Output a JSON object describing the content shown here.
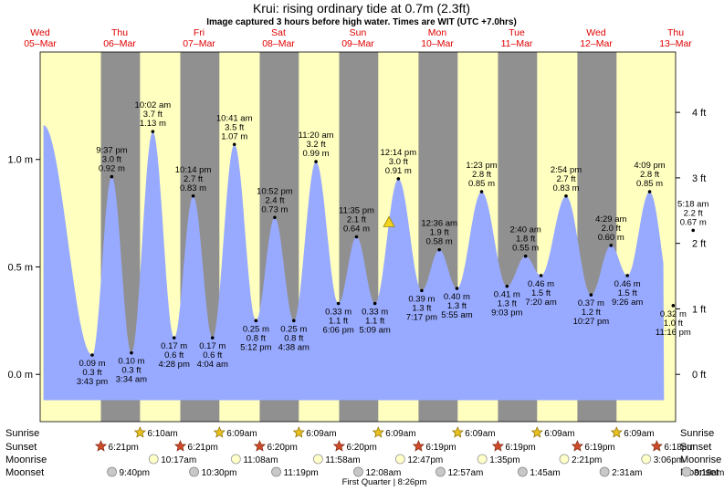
{
  "title": "Krui: rising  ordinary tide at 0.7m (2.3ft)",
  "subtitle": "Image captured 3 hours before high water. Times are WIT (UTC +7.0hrs)",
  "colors": {
    "day": "#ffffc0",
    "night": "#909090",
    "tide": "#98aaff",
    "day_label": "#e00000",
    "axis": "#000000"
  },
  "days": [
    {
      "dow": "Wed",
      "date": "05–Mar"
    },
    {
      "dow": "Thu",
      "date": "06–Mar"
    },
    {
      "dow": "Fri",
      "date": "07–Mar"
    },
    {
      "dow": "Sat",
      "date": "08–Mar"
    },
    {
      "dow": "Sun",
      "date": "09–Mar"
    },
    {
      "dow": "Mon",
      "date": "10–Mar"
    },
    {
      "dow": "Tue",
      "date": "11–Mar"
    },
    {
      "dow": "Wed",
      "date": "12–Mar"
    },
    {
      "dow": "Thu",
      "date": "13–Mar"
    }
  ],
  "chart_data": {
    "type": "area",
    "title": "Krui: rising  ordinary tide at 0.7m (2.3ft)",
    "time_unit": "hours from 00:00 Wed 05-Mar (WIT)",
    "x_range_hours": [
      0,
      192
    ],
    "y_left": {
      "unit": "m",
      "range": [
        -0.22,
        1.5
      ],
      "ticks": [
        {
          "v": 0.0,
          "label": "0.0 m"
        },
        {
          "v": 0.5,
          "label": "0.5 m"
        },
        {
          "v": 1.0,
          "label": "1.0 m"
        }
      ]
    },
    "y_right": {
      "unit": "ft",
      "ticks": [
        {
          "v": 0.0,
          "label": "0 ft"
        },
        {
          "v": 0.3048,
          "label": "1 ft"
        },
        {
          "v": 0.6096,
          "label": "2 ft"
        },
        {
          "v": 0.9144,
          "label": "3 ft"
        },
        {
          "v": 1.2192,
          "label": "4 ft"
        }
      ]
    },
    "night_periods_hours": [
      [
        18.35,
        30.17
      ],
      [
        42.35,
        54.15
      ],
      [
        66.33,
        78.15
      ],
      [
        90.33,
        102.15
      ],
      [
        114.32,
        126.15
      ],
      [
        138.32,
        150.15
      ],
      [
        162.32,
        174.15
      ]
    ],
    "curve_start": {
      "t": 1.0,
      "h": 1.16
    },
    "curve_end": {
      "t": 188.5,
      "h": 0.47
    },
    "extremes": [
      {
        "t": 15.72,
        "h": 0.09,
        "lines": [
          "0.09 m",
          "0.3 ft",
          "3:43 pm"
        ],
        "pos": "below"
      },
      {
        "t": 21.62,
        "h": 0.92,
        "lines": [
          "9:37 pm",
          "3.0 ft",
          "0.92 m"
        ],
        "pos": "above"
      },
      {
        "t": 27.57,
        "h": 0.1,
        "lines": [
          "0.10 m",
          "0.3 ft",
          "3:34 am"
        ],
        "pos": "below"
      },
      {
        "t": 34.03,
        "h": 1.13,
        "lines": [
          "10:02 am",
          "3.7 ft",
          "1.13 m"
        ],
        "pos": "above"
      },
      {
        "t": 40.47,
        "h": 0.17,
        "lines": [
          "0.17 m",
          "0.6 ft",
          "4:28 pm"
        ],
        "pos": "below"
      },
      {
        "t": 46.23,
        "h": 0.83,
        "lines": [
          "10:14 pm",
          "2.7 ft",
          "0.83 m"
        ],
        "pos": "above"
      },
      {
        "t": 52.07,
        "h": 0.17,
        "lines": [
          "0.17 m",
          "0.6 ft",
          "4:04 am"
        ],
        "pos": "below"
      },
      {
        "t": 58.68,
        "h": 1.07,
        "lines": [
          "10:41 am",
          "3.5 ft",
          "1.07 m"
        ],
        "pos": "above"
      },
      {
        "t": 65.2,
        "h": 0.25,
        "lines": [
          "0.25 m",
          "0.8 ft",
          "5:12 pm"
        ],
        "pos": "below"
      },
      {
        "t": 70.87,
        "h": 0.73,
        "lines": [
          "10:52 pm",
          "2.4 ft",
          "0.73 m"
        ],
        "pos": "above"
      },
      {
        "t": 76.63,
        "h": 0.25,
        "lines": [
          "0.25 m",
          "0.8 ft",
          "4:38 am"
        ],
        "pos": "below"
      },
      {
        "t": 83.33,
        "h": 0.99,
        "lines": [
          "11:20 am",
          "3.2 ft",
          "0.99 m"
        ],
        "pos": "above"
      },
      {
        "t": 90.1,
        "h": 0.33,
        "lines": [
          "0.33 m",
          "1.1 ft",
          "6:06 pm"
        ],
        "pos": "below"
      },
      {
        "t": 95.58,
        "h": 0.64,
        "lines": [
          "11:35 pm",
          "2.1 ft",
          "0.64 m"
        ],
        "pos": "above"
      },
      {
        "t": 101.15,
        "h": 0.33,
        "lines": [
          "0.33 m",
          "1.1 ft",
          "5:09 am"
        ],
        "pos": "below"
      },
      {
        "t": 108.23,
        "h": 0.91,
        "lines": [
          "12:14 pm",
          "3.0 ft",
          "0.91 m"
        ],
        "pos": "above"
      },
      {
        "t": 115.28,
        "h": 0.39,
        "lines": [
          "0.39 m",
          "1.3 ft",
          "7:17 pm"
        ],
        "pos": "below"
      },
      {
        "t": 120.6,
        "h": 0.58,
        "lines": [
          "12:36 am",
          "1.9 ft",
          "0.58 m"
        ],
        "pos": "above"
      },
      {
        "t": 125.92,
        "h": 0.4,
        "lines": [
          "0.40 m",
          "1.3 ft",
          "5:55 am"
        ],
        "pos": "below"
      },
      {
        "t": 133.38,
        "h": 0.85,
        "lines": [
          "1:23 pm",
          "2.8 ft",
          "0.85 m"
        ],
        "pos": "above"
      },
      {
        "t": 141.05,
        "h": 0.41,
        "lines": [
          "0.41 m",
          "1.3 ft",
          "9:03 pm"
        ],
        "pos": "below"
      },
      {
        "t": 146.67,
        "h": 0.55,
        "lines": [
          "2:40 am",
          "1.8 ft",
          "0.55 m"
        ],
        "pos": "above"
      },
      {
        "t": 151.33,
        "h": 0.46,
        "lines": [
          "0.46 m",
          "1.5 ft",
          "7:20 am"
        ],
        "pos": "below"
      },
      {
        "t": 158.9,
        "h": 0.83,
        "lines": [
          "2:54 pm",
          "2.7 ft",
          "0.83 m"
        ],
        "pos": "above"
      },
      {
        "t": 166.45,
        "h": 0.37,
        "lines": [
          "0.37 m",
          "1.2 ft",
          "10:27 pm"
        ],
        "pos": "below"
      },
      {
        "t": 172.48,
        "h": 0.6,
        "lines": [
          "4:29 am",
          "2.0 ft",
          "0.60 m"
        ],
        "pos": "above"
      },
      {
        "t": 177.43,
        "h": 0.46,
        "lines": [
          "0.46 m",
          "1.5 ft",
          "9:26 am"
        ],
        "pos": "below"
      },
      {
        "t": 184.15,
        "h": 0.85,
        "lines": [
          "4:09 pm",
          "2.8 ft",
          "0.85 m"
        ],
        "pos": "above"
      },
      {
        "t": 191.27,
        "h": 0.32,
        "lines": [
          "0.32 m",
          "1.0 ft",
          "11:16 pm"
        ],
        "pos": "below"
      },
      {
        "t": 197.3,
        "h": 0.67,
        "lines": [
          "5:18 am",
          "2.2 ft",
          "0.67 m"
        ],
        "pos": "above"
      }
    ],
    "now_marker": {
      "t": 105.4,
      "h": 0.7
    }
  },
  "astro": {
    "row_labels": {
      "sunrise": "Sunrise",
      "sunset": "Sunset",
      "moonrise": "Moonrise",
      "moonset": "Moonset"
    },
    "sunrise": [
      {
        "t": 30.17,
        "label": "6:10am"
      },
      {
        "t": 54.15,
        "label": "6:09am"
      },
      {
        "t": 78.15,
        "label": "6:09am"
      },
      {
        "t": 102.15,
        "label": "6:09am"
      },
      {
        "t": 126.15,
        "label": "6:09am"
      },
      {
        "t": 150.15,
        "label": "6:09am"
      },
      {
        "t": 174.15,
        "label": "6:09am"
      }
    ],
    "sunset": [
      {
        "t": 18.35,
        "label": "6:21pm"
      },
      {
        "t": 42.35,
        "label": "6:21pm"
      },
      {
        "t": 66.33,
        "label": "6:20pm"
      },
      {
        "t": 90.33,
        "label": "6:20pm"
      },
      {
        "t": 114.32,
        "label": "6:19pm"
      },
      {
        "t": 138.32,
        "label": "6:19pm"
      },
      {
        "t": 162.32,
        "label": "6:19pm"
      },
      {
        "t": 186.3,
        "label": "6:18pm"
      }
    ],
    "moonrise": [
      {
        "t": 34.28,
        "label": "10:17am"
      },
      {
        "t": 59.13,
        "label": "11:08am"
      },
      {
        "t": 83.97,
        "label": "11:58am"
      },
      {
        "t": 108.78,
        "label": "12:47pm"
      },
      {
        "t": 133.58,
        "label": "1:35pm"
      },
      {
        "t": 158.35,
        "label": "2:21pm"
      },
      {
        "t": 183.1,
        "label": "3:06pm"
      }
    ],
    "moonset": [
      {
        "t": 21.67,
        "label": "9:40pm"
      },
      {
        "t": 46.5,
        "label": "10:30pm"
      },
      {
        "t": 71.32,
        "label": "11:19pm"
      },
      {
        "t": 96.13,
        "label": "12:08am"
      },
      {
        "t": 120.95,
        "label": "12:57am"
      },
      {
        "t": 145.75,
        "label": "1:45am"
      },
      {
        "t": 170.52,
        "label": "2:31am"
      },
      {
        "t": 195.3,
        "label": "3:18am"
      }
    ],
    "moon_phase": {
      "t": 104.0,
      "label": "First Quarter | 8:26pm"
    }
  }
}
